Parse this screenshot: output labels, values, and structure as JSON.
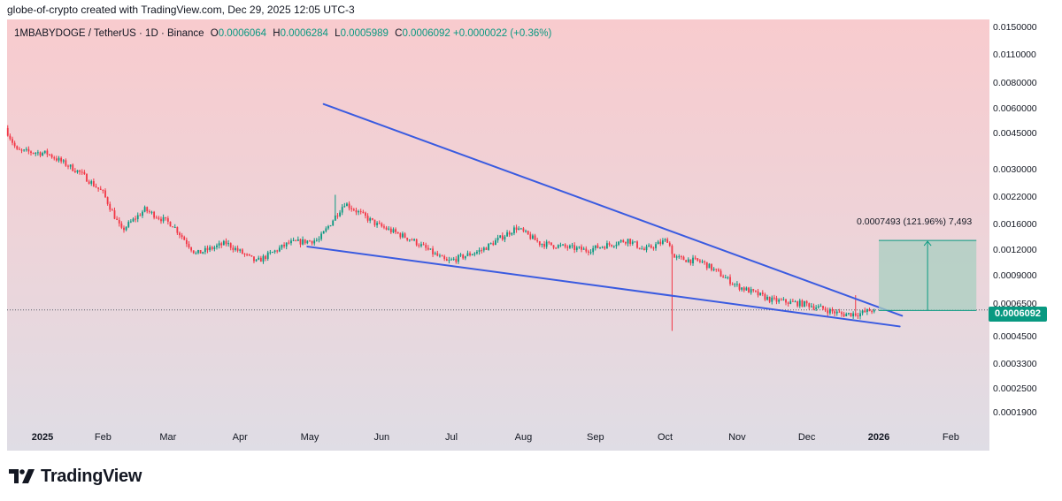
{
  "header": {
    "caption": "globe-of-crypto created with TradingView.com, Dec 29, 2025 12:05 UTC-3"
  },
  "legend": {
    "symbol": "1MBABYDOGE / TetherUS · 1D · Binance",
    "open_key": "O",
    "open": "0.0006064",
    "high_key": "H",
    "high": "0.0006284",
    "low_key": "L",
    "low": "0.0005989",
    "close_key": "C",
    "close": "0.0006092",
    "change": "+0.0000022 (+0.36%)"
  },
  "price_tag": "0.0006092",
  "measure_label": "0.0007493 (121.96%) 7,493",
  "brand": {
    "name": "TradingView"
  },
  "colors": {
    "up": "#089981",
    "down": "#f23645",
    "trendline": "#3a5be0",
    "measure_box": "#a8cfc0",
    "measure_line": "#089981"
  },
  "chart_data": {
    "type": "candlestick",
    "title": "1MBABYDOGE / TetherUS · 1D · Binance",
    "y_scale": "log",
    "ylim": [
      0.00017,
      0.0155
    ],
    "y_ticks": [
      "0.0150000",
      "0.0110000",
      "0.0080000",
      "0.0060000",
      "0.0045000",
      "0.0030000",
      "0.0022000",
      "0.0016000",
      "0.0012000",
      "0.0009000",
      "0.0006500",
      "0.0004500",
      "0.0003300",
      "0.0002500",
      "0.0001900"
    ],
    "x_ticks": [
      {
        "label": "2025",
        "day": 0,
        "year": true
      },
      {
        "label": "Feb",
        "day": 31
      },
      {
        "label": "Mar",
        "day": 59
      },
      {
        "label": "Apr",
        "day": 90
      },
      {
        "label": "May",
        "day": 120
      },
      {
        "label": "Jun",
        "day": 151
      },
      {
        "label": "Jul",
        "day": 181
      },
      {
        "label": "Aug",
        "day": 212
      },
      {
        "label": "Sep",
        "day": 243
      },
      {
        "label": "Oct",
        "day": 273
      },
      {
        "label": "Nov",
        "day": 304
      },
      {
        "label": "Dec",
        "day": 334
      },
      {
        "label": "2026",
        "day": 365,
        "year": true
      },
      {
        "label": "Feb",
        "day": 396
      }
    ],
    "x_range_days": [
      -10,
      415
    ],
    "last_price": 0.0006092,
    "price_anchors": [
      {
        "day": -10,
        "price": 0.0048
      },
      {
        "day": -5,
        "price": 0.0037
      },
      {
        "day": 8,
        "price": 0.0036
      },
      {
        "day": 22,
        "price": 0.0029
      },
      {
        "day": 32,
        "price": 0.0023
      },
      {
        "day": 40,
        "price": 0.0015
      },
      {
        "day": 50,
        "price": 0.0019
      },
      {
        "day": 62,
        "price": 0.0016
      },
      {
        "day": 72,
        "price": 0.00115
      },
      {
        "day": 85,
        "price": 0.0013
      },
      {
        "day": 98,
        "price": 0.00105
      },
      {
        "day": 112,
        "price": 0.0013
      },
      {
        "day": 125,
        "price": 0.00135
      },
      {
        "day": 136,
        "price": 0.00205
      },
      {
        "day": 150,
        "price": 0.0016
      },
      {
        "day": 165,
        "price": 0.00135
      },
      {
        "day": 180,
        "price": 0.00105
      },
      {
        "day": 195,
        "price": 0.0012
      },
      {
        "day": 210,
        "price": 0.00155
      },
      {
        "day": 220,
        "price": 0.0013
      },
      {
        "day": 240,
        "price": 0.0012
      },
      {
        "day": 258,
        "price": 0.00135
      },
      {
        "day": 265,
        "price": 0.0012
      },
      {
        "day": 275,
        "price": 0.00135
      },
      {
        "day": 278,
        "price": 0.0011
      },
      {
        "day": 290,
        "price": 0.00105
      },
      {
        "day": 305,
        "price": 0.0008
      },
      {
        "day": 320,
        "price": 0.00068
      },
      {
        "day": 335,
        "price": 0.00065
      },
      {
        "day": 350,
        "price": 0.00058
      },
      {
        "day": 358,
        "price": 0.000585
      },
      {
        "day": 363,
        "price": 0.0006092
      }
    ],
    "wicks": [
      {
        "day": 276,
        "low": 0.00048
      },
      {
        "day": 131,
        "high": 0.00225
      },
      {
        "day": 355,
        "high": 0.00072
      }
    ],
    "trendlines": [
      {
        "name": "upper",
        "from": {
          "day": 126,
          "price": 0.0063
        },
        "to": {
          "day": 375,
          "price": 0.00057
        }
      },
      {
        "name": "lower",
        "from": {
          "day": 119,
          "price": 0.00125
        },
        "to": {
          "day": 374,
          "price": 0.000505
        }
      }
    ],
    "projection": {
      "start_day": 365,
      "end_day": 407,
      "from_price": 0.000605,
      "to_price": 0.00134,
      "label": "0.0007493 (121.96%) 7,493"
    }
  }
}
